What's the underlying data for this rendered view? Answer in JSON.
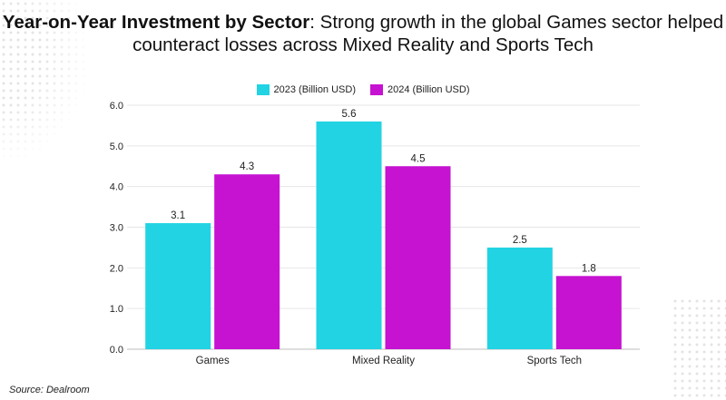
{
  "title": {
    "bold": "Year-on-Year Investment by Sector",
    "line1_rest": ": Strong growth in the global Games sector helped",
    "line2": "counteract losses across Mixed Reality and Sports Tech"
  },
  "source": "Source: Dealroom",
  "chart_data": {
    "type": "bar",
    "categories": [
      "Games",
      "Mixed Reality",
      "Sports Tech"
    ],
    "series": [
      {
        "name": "2023 (Billion USD)",
        "values": [
          3.1,
          5.6,
          2.5
        ],
        "color": "#22d3e3"
      },
      {
        "name": "2024 (Billion USD)",
        "values": [
          4.3,
          4.5,
          1.8
        ],
        "color": "#c612d1"
      }
    ],
    "ylim": [
      0,
      6
    ],
    "yticks": [
      "0.0",
      "1.0",
      "2.0",
      "3.0",
      "4.0",
      "5.0",
      "6.0"
    ],
    "grid": true,
    "legend": "top-center",
    "data_labels": true
  }
}
